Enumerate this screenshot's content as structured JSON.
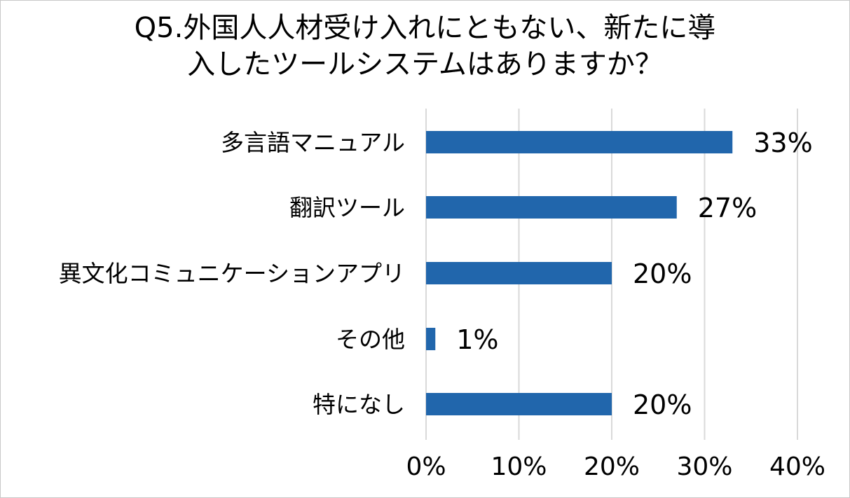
{
  "chart_data": {
    "type": "bar",
    "orientation": "horizontal",
    "title": [
      "Q5.外国人人材受け入れにともない、新たに導",
      "入したツールシステムはありますか？"
    ],
    "categories": [
      "多言語マニュアル",
      "翻訳ツール",
      "異文化コミュニケーションアプリ",
      "その他",
      "特になし"
    ],
    "values": [
      33,
      27,
      20,
      1,
      20
    ],
    "data_labels": [
      "33%",
      "27%",
      "20%",
      "1%",
      "20%"
    ],
    "xlim": [
      0,
      40
    ],
    "x_ticks": [
      0,
      10,
      20,
      30,
      40
    ],
    "x_tick_labels": [
      "0%",
      "10%",
      "20%",
      "30%",
      "40%"
    ],
    "grid": "vertical",
    "legend": "none",
    "bar_color": "#2166ac",
    "grid_color": "#d9d9d9"
  }
}
